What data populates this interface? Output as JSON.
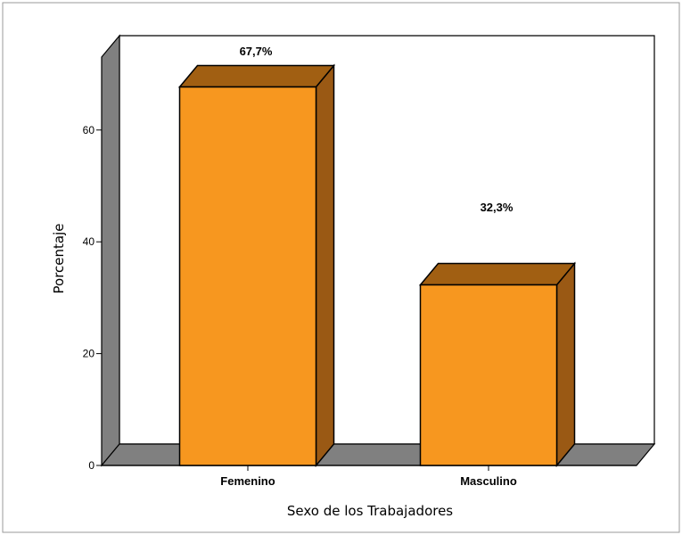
{
  "chart_data": {
    "type": "bar",
    "categories": [
      "Femenino",
      "Masculino"
    ],
    "values": [
      67.7,
      32.3
    ],
    "data_labels": [
      "67,7%",
      "32,3%"
    ],
    "xlabel": "Sexo de los Trabajadores",
    "ylabel": "Porcentaje",
    "ylim": [
      0,
      75
    ],
    "yticks": [
      0,
      20,
      40,
      60
    ],
    "grid": false,
    "colors": {
      "bar_front": "#F7971F",
      "bar_top": "#A15F12",
      "bar_side": "#9A5914",
      "wall_back": "#FFFFFF",
      "wall_left": "#808080",
      "floor": "#808080",
      "outline": "#000000"
    }
  }
}
